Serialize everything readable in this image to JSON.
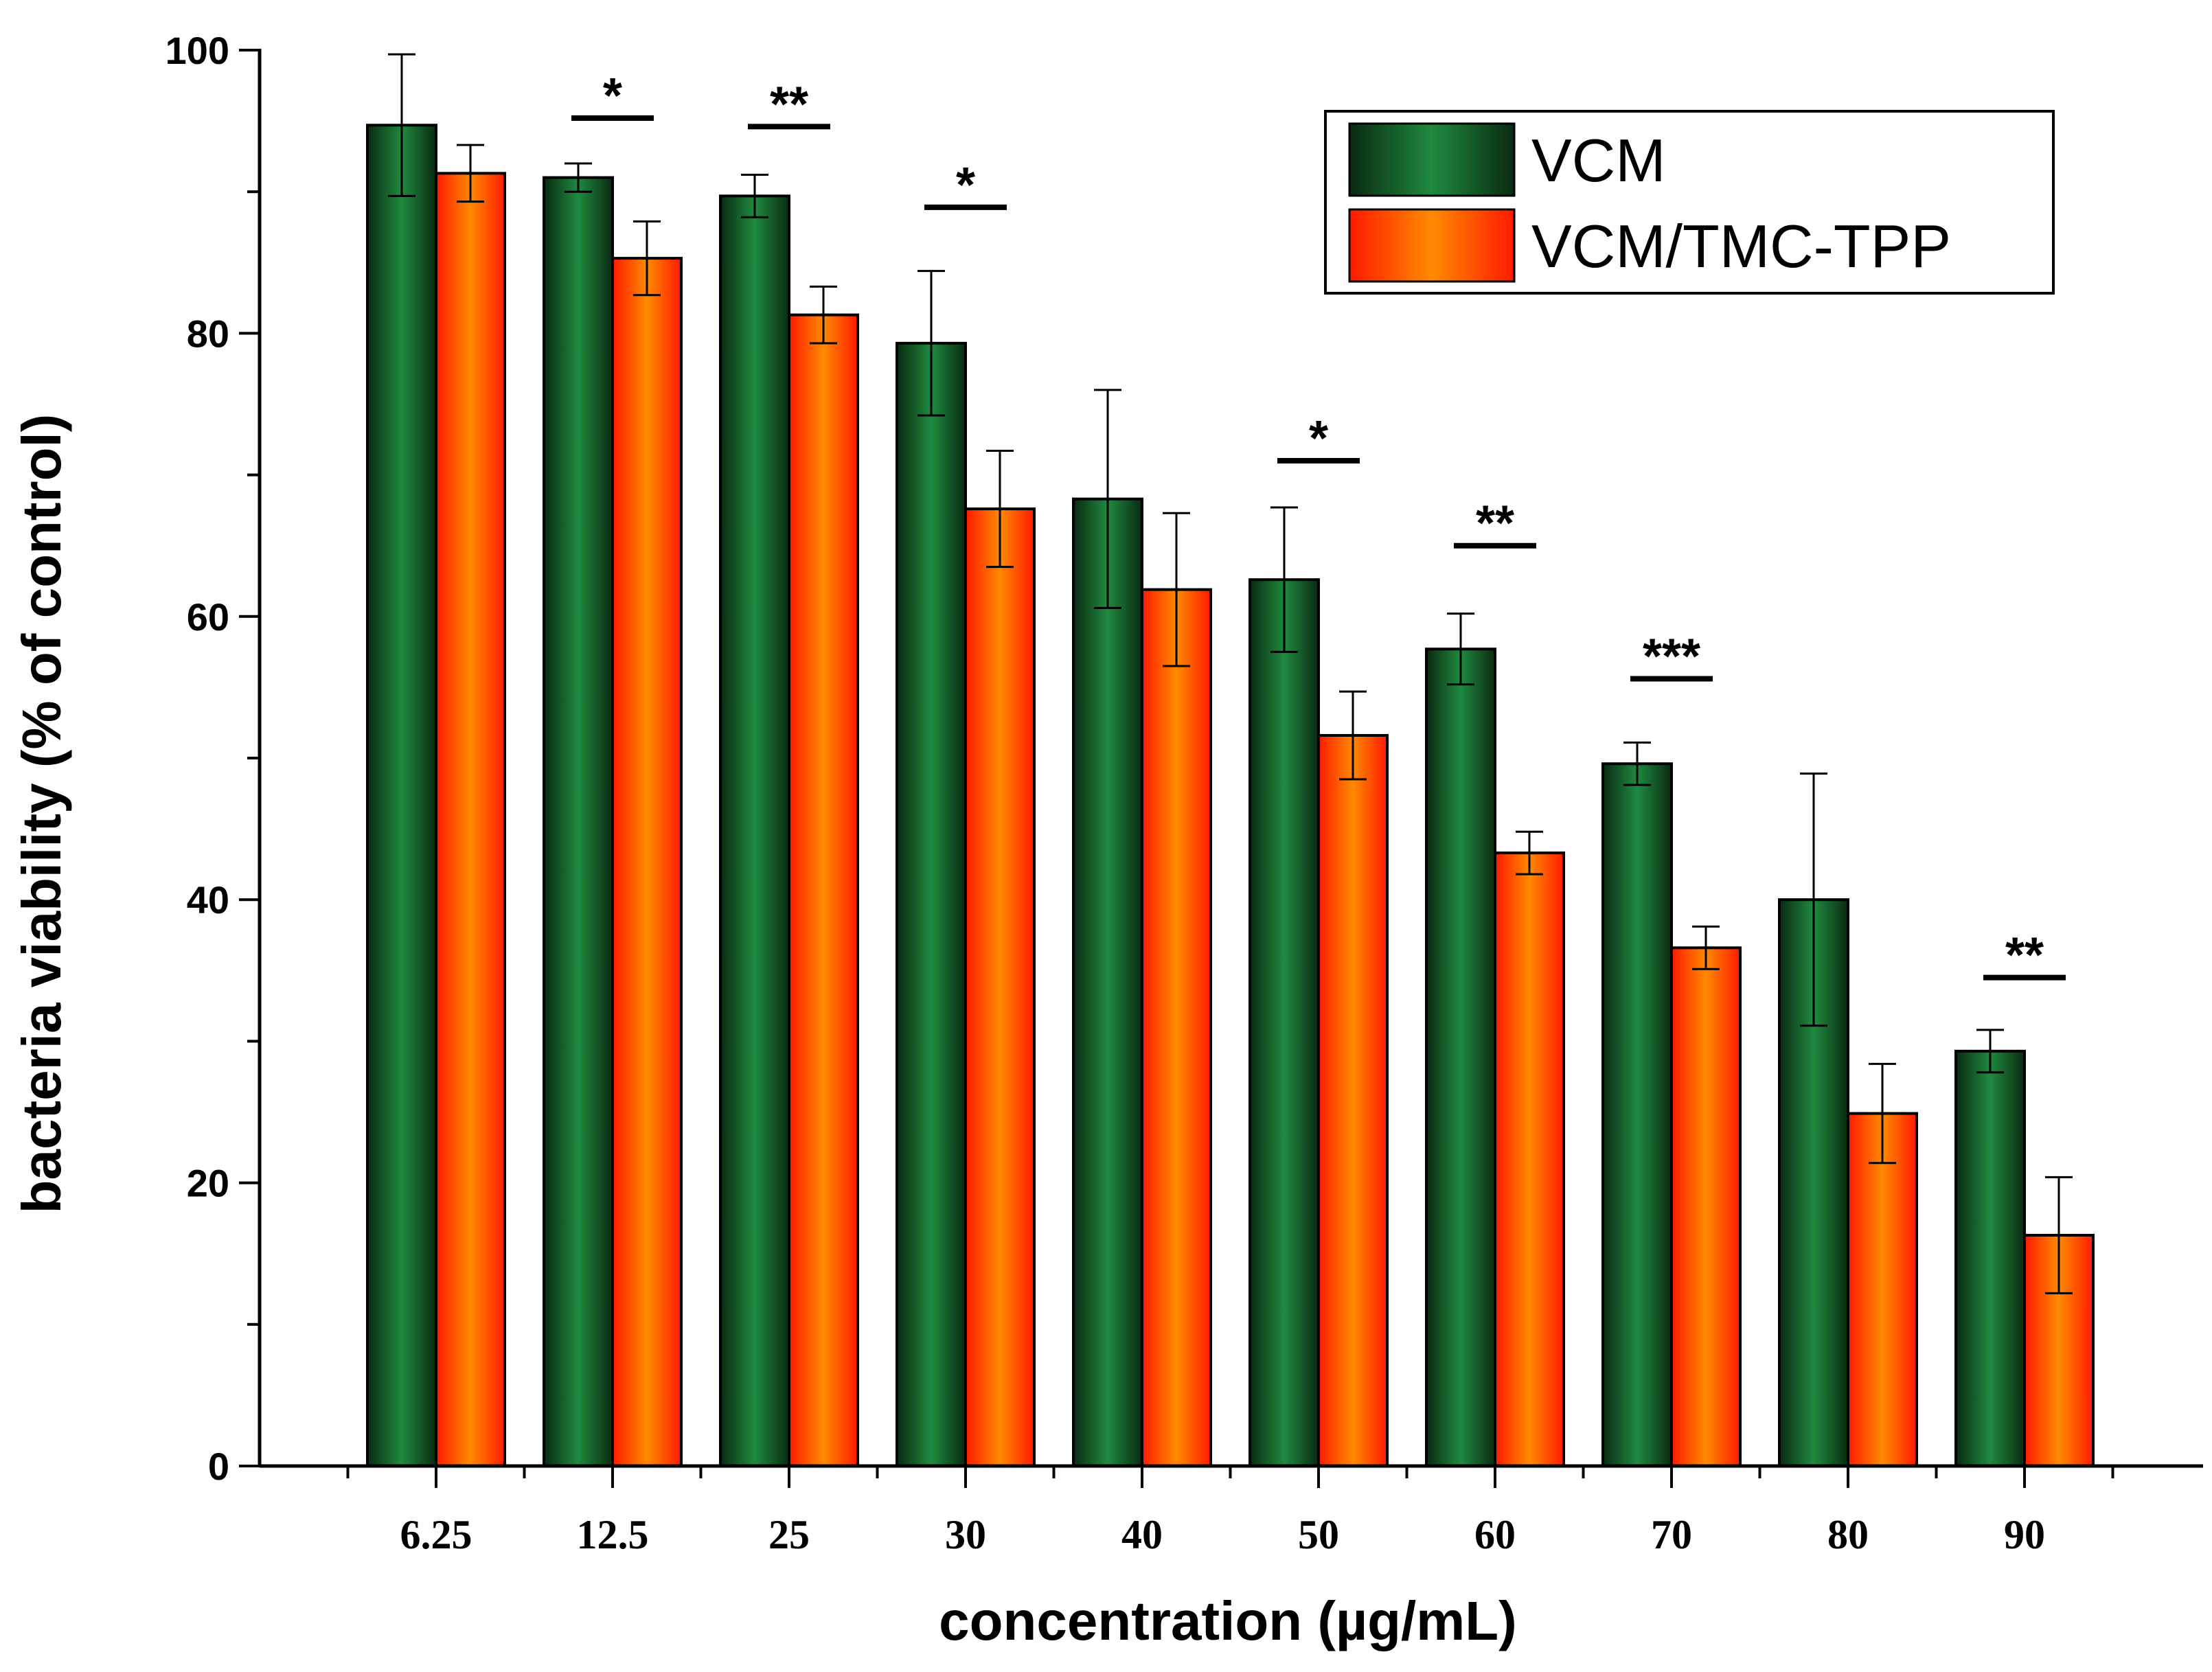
{
  "chart_data": {
    "type": "bar",
    "title": "",
    "xlabel": "concentration (µg/mL)",
    "ylabel": "bacteria viability (% of control)",
    "ylim": [
      0,
      100
    ],
    "yticks": [
      0,
      20,
      40,
      60,
      80,
      100
    ],
    "grid": false,
    "legend": "top-right",
    "categories": [
      "6.25",
      "12.5",
      "25",
      "30",
      "40",
      "50",
      "60",
      "70",
      "80",
      "90"
    ],
    "series": [
      {
        "name": "VCM",
        "color_dark": "#0a2a12",
        "color_light": "#1f8a3e",
        "values": [
          94.7,
          91.0,
          89.7,
          79.3,
          68.3,
          62.6,
          57.7,
          49.6,
          40.0,
          29.3
        ],
        "errors": [
          5.0,
          1.0,
          1.5,
          5.1,
          7.7,
          5.1,
          2.5,
          1.5,
          8.9,
          1.5
        ]
      },
      {
        "name": "VCM/TMC-TPP",
        "color_dark": "#ff1a00",
        "color_light": "#ff8a00",
        "values": [
          91.3,
          85.3,
          81.3,
          67.6,
          61.9,
          51.6,
          43.3,
          36.6,
          24.9,
          16.3
        ],
        "errors": [
          2.0,
          2.6,
          2.0,
          4.1,
          5.4,
          3.1,
          1.5,
          1.5,
          3.5,
          4.1
        ]
      }
    ],
    "annotations": [
      {
        "category": "12.5",
        "label": "*",
        "value": 95.2
      },
      {
        "category": "25",
        "label": "**",
        "value": 94.6
      },
      {
        "category": "30",
        "label": "*",
        "value": 88.9
      },
      {
        "category": "50",
        "label": "*",
        "value": 71.0
      },
      {
        "category": "60",
        "label": "**",
        "value": 65.0
      },
      {
        "category": "70",
        "label": "***",
        "value": 55.6
      },
      {
        "category": "90",
        "label": "**",
        "value": 34.5
      }
    ]
  }
}
